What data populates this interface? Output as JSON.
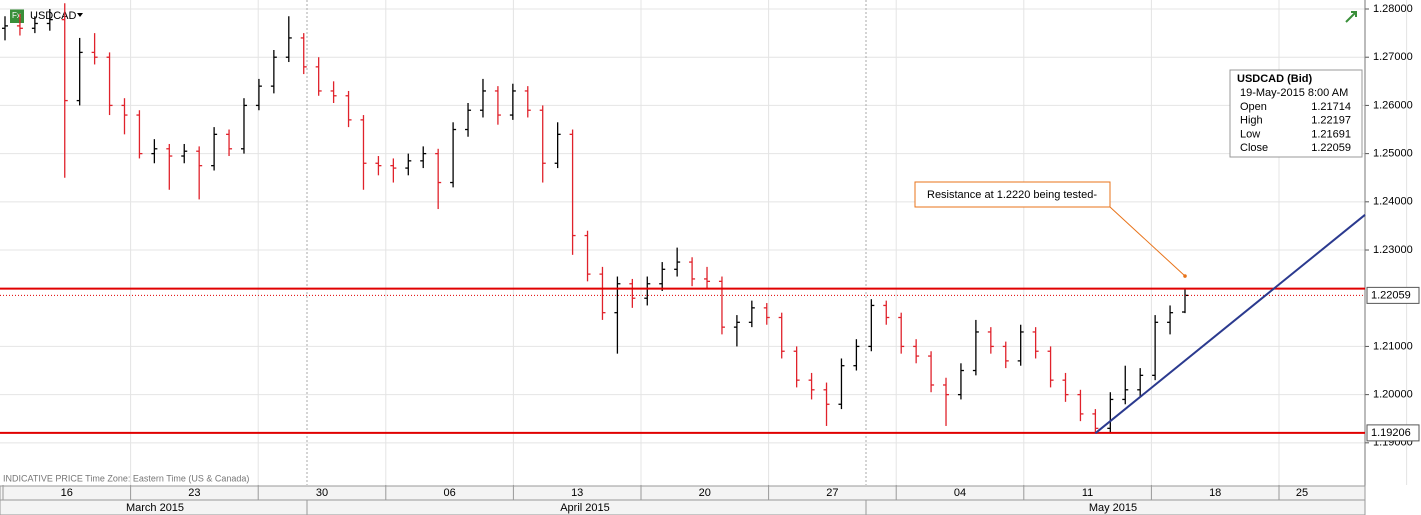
{
  "chart_data": {
    "type": "ohlc",
    "title": "USDCAD",
    "up_color": "#000000",
    "down_color": "#e0222b",
    "grid": true,
    "ylim": [
      1.18125,
      1.28187
    ],
    "yticks": [
      {
        "value": 1.28,
        "label": "1.28000"
      },
      {
        "value": 1.27,
        "label": "1.27000"
      },
      {
        "value": 1.26,
        "label": "1.26000"
      },
      {
        "value": 1.25,
        "label": "1.25000"
      },
      {
        "value": 1.24,
        "label": "1.24000"
      },
      {
        "value": 1.23,
        "label": "1.23000"
      },
      {
        "value": 1.21,
        "label": "1.21000"
      },
      {
        "value": 1.2,
        "label": "1.20000"
      },
      {
        "value": 1.19,
        "label": "1.19000"
      }
    ],
    "categories": [
      "16",
      "23",
      "30",
      "06",
      "13",
      "20",
      "27",
      "04",
      "11",
      "18",
      "25"
    ],
    "months": [
      "March 2015",
      "April 2015",
      "May 2015"
    ],
    "footer": "INDICATIVE PRICE   Time Zone: Eastern Time (US & Canada)",
    "bars": [
      [
        1.276,
        1.2785,
        1.2735,
        1.2765
      ],
      [
        1.2765,
        1.279,
        1.2745,
        1.276
      ],
      [
        1.276,
        1.2785,
        1.275,
        1.277
      ],
      [
        1.277,
        1.28,
        1.2755,
        1.2778
      ],
      [
        1.2778,
        1.2812,
        1.245,
        1.261
      ],
      [
        1.261,
        1.274,
        1.26,
        1.271
      ],
      [
        1.271,
        1.275,
        1.2685,
        1.27
      ],
      [
        1.27,
        1.271,
        1.258,
        1.26
      ],
      [
        1.26,
        1.2615,
        1.254,
        1.258
      ],
      [
        1.258,
        1.259,
        1.249,
        1.25
      ],
      [
        1.25,
        1.253,
        1.248,
        1.251
      ],
      [
        1.251,
        1.252,
        1.2425,
        1.2495
      ],
      [
        1.2495,
        1.252,
        1.248,
        1.2505
      ],
      [
        1.2505,
        1.2515,
        1.2405,
        1.2475
      ],
      [
        1.2475,
        1.2555,
        1.2465,
        1.254
      ],
      [
        1.254,
        1.255,
        1.2495,
        1.251
      ],
      [
        1.251,
        1.2615,
        1.25,
        1.26
      ],
      [
        1.26,
        1.2655,
        1.259,
        1.264
      ],
      [
        1.264,
        1.2715,
        1.2625,
        1.27
      ],
      [
        1.27,
        1.2785,
        1.269,
        1.274
      ],
      [
        1.274,
        1.275,
        1.2665,
        1.268
      ],
      [
        1.268,
        1.27,
        1.262,
        1.263
      ],
      [
        1.263,
        1.265,
        1.2605,
        1.262
      ],
      [
        1.262,
        1.263,
        1.2555,
        1.257
      ],
      [
        1.257,
        1.258,
        1.2425,
        1.248
      ],
      [
        1.248,
        1.2495,
        1.2455,
        1.2475
      ],
      [
        1.2475,
        1.249,
        1.244,
        1.247
      ],
      [
        1.247,
        1.25,
        1.2455,
        1.2485
      ],
      [
        1.2485,
        1.2515,
        1.247,
        1.25
      ],
      [
        1.25,
        1.251,
        1.2385,
        1.244
      ],
      [
        1.244,
        1.2565,
        1.243,
        1.255
      ],
      [
        1.255,
        1.2605,
        1.2535,
        1.259
      ],
      [
        1.259,
        1.2655,
        1.2575,
        1.263
      ],
      [
        1.263,
        1.264,
        1.256,
        1.258
      ],
      [
        1.258,
        1.2645,
        1.257,
        1.263
      ],
      [
        1.263,
        1.264,
        1.2575,
        1.259
      ],
      [
        1.259,
        1.26,
        1.244,
        1.248
      ],
      [
        1.248,
        1.2565,
        1.247,
        1.254
      ],
      [
        1.254,
        1.255,
        1.229,
        1.233
      ],
      [
        1.233,
        1.234,
        1.2235,
        1.225
      ],
      [
        1.225,
        1.2265,
        1.2155,
        1.217
      ],
      [
        1.217,
        1.2245,
        1.2085,
        1.223
      ],
      [
        1.223,
        1.224,
        1.218,
        1.22
      ],
      [
        1.22,
        1.2245,
        1.2185,
        1.223
      ],
      [
        1.223,
        1.2275,
        1.2215,
        1.226
      ],
      [
        1.226,
        1.2305,
        1.2245,
        1.2275
      ],
      [
        1.2275,
        1.2285,
        1.2225,
        1.224
      ],
      [
        1.224,
        1.2265,
        1.222,
        1.2235
      ],
      [
        1.2235,
        1.2245,
        1.2125,
        1.214
      ],
      [
        1.214,
        1.2165,
        1.21,
        1.215
      ],
      [
        1.215,
        1.2195,
        1.214,
        1.218
      ],
      [
        1.218,
        1.219,
        1.2145,
        1.216
      ],
      [
        1.216,
        1.217,
        1.2075,
        1.209
      ],
      [
        1.209,
        1.21,
        1.2015,
        1.203
      ],
      [
        1.203,
        1.2045,
        1.199,
        1.201
      ],
      [
        1.201,
        1.2025,
        1.1935,
        1.198
      ],
      [
        1.198,
        1.2075,
        1.197,
        1.206
      ],
      [
        1.206,
        1.2115,
        1.205,
        1.21
      ],
      [
        1.21,
        1.2198,
        1.209,
        1.2185
      ],
      [
        1.2185,
        1.2195,
        1.2145,
        1.216
      ],
      [
        1.216,
        1.217,
        1.2085,
        1.21
      ],
      [
        1.21,
        1.2115,
        1.2065,
        1.208
      ],
      [
        1.208,
        1.209,
        1.2005,
        1.202
      ],
      [
        1.202,
        1.2035,
        1.1935,
        1.2
      ],
      [
        1.2,
        1.2065,
        1.199,
        1.205
      ],
      [
        1.205,
        1.2155,
        1.204,
        1.213
      ],
      [
        1.213,
        1.214,
        1.2085,
        1.21
      ],
      [
        1.21,
        1.211,
        1.2055,
        1.207
      ],
      [
        1.207,
        1.2145,
        1.206,
        1.213
      ],
      [
        1.213,
        1.214,
        1.2075,
        1.209
      ],
      [
        1.209,
        1.21,
        1.2015,
        1.203
      ],
      [
        1.203,
        1.2045,
        1.1985,
        1.2
      ],
      [
        1.2,
        1.201,
        1.1945,
        1.196
      ],
      [
        1.196,
        1.197,
        1.192,
        1.193
      ],
      [
        1.193,
        1.2005,
        1.192,
        1.199
      ],
      [
        1.199,
        1.206,
        1.198,
        1.201
      ],
      [
        1.201,
        1.2055,
        1.1995,
        1.204
      ],
      [
        1.204,
        1.2165,
        1.203,
        1.215
      ],
      [
        1.215,
        1.2185,
        1.2125,
        1.217
      ],
      [
        1.21714,
        1.22197,
        1.21691,
        1.22059
      ]
    ],
    "hlines": [
      {
        "value": 1.222,
        "color": "#e00000"
      },
      {
        "value": 1.19206,
        "color": "#e00000"
      }
    ],
    "trendline": {
      "start": 1.192,
      "end": 1.2373,
      "color": "#2b3a8f"
    },
    "annotation": {
      "text": "Resistance at 1.2220 being tested-",
      "target": 1.2246,
      "color": "#e8731a"
    },
    "info": {
      "title": "USDCAD (Bid)",
      "time": "19-May-2015 8:00 AM",
      "labels": [
        "Open",
        "High",
        "Low",
        "Close"
      ]
    }
  }
}
